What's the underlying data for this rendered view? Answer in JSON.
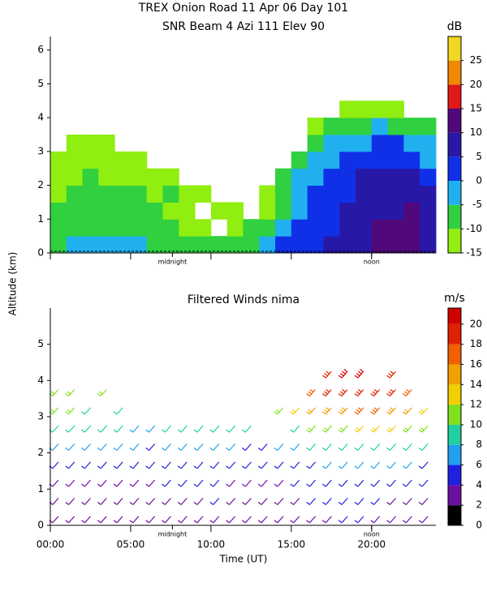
{
  "chart_data": [
    {
      "type": "heatmap",
      "title": "TREX Onion Road  11 Apr 06 Day 101",
      "subtitle": "SNR Beam 4 Azi 111 Elev 90",
      "ylabel": "Altitude (km)",
      "x_edges": [
        0,
        1,
        2,
        3,
        4,
        5,
        6,
        7,
        8,
        9,
        10,
        11,
        12,
        13,
        14,
        15,
        16,
        17,
        18,
        19,
        20,
        21,
        22,
        23,
        24
      ],
      "y_edges": [
        0,
        0.5,
        1,
        1.5,
        2,
        2.5,
        3,
        3.5,
        4,
        4.5
      ],
      "values": [
        [
          -6,
          -4,
          -3,
          -2,
          -4,
          -3,
          -6,
          -8,
          -8,
          -9,
          -10,
          -10,
          -8,
          -5,
          2,
          4,
          3,
          5,
          6,
          8,
          10,
          12,
          12,
          8
        ],
        [
          -9,
          -7,
          -6,
          -6,
          -7,
          -6,
          -8,
          -10,
          -11,
          -12,
          null,
          -12,
          -10,
          -8,
          -4,
          0,
          2,
          4,
          6,
          8,
          10,
          12,
          13,
          9
        ],
        [
          -10,
          -8,
          -8,
          -7,
          -9,
          -8,
          -10,
          -12,
          -12,
          null,
          -13,
          -12,
          null,
          -11,
          -6,
          -2,
          1,
          3,
          5,
          7,
          8,
          9,
          10,
          7
        ],
        [
          -11,
          -10,
          -9,
          -9,
          -10,
          -10,
          -12,
          -9,
          -13,
          -12,
          null,
          null,
          null,
          -12,
          -7,
          -3,
          0,
          2,
          4,
          6,
          7,
          8,
          7,
          5
        ],
        [
          -12,
          -11,
          -10,
          -11,
          -12,
          -12,
          -13,
          -12,
          null,
          null,
          null,
          null,
          null,
          null,
          -10,
          -5,
          -2,
          1,
          3,
          5,
          5,
          6,
          5,
          2
        ],
        [
          -13,
          -12,
          -12,
          -12,
          -13,
          -13,
          null,
          null,
          null,
          null,
          null,
          null,
          null,
          null,
          null,
          -8,
          -5,
          -2,
          1,
          3,
          3,
          4,
          2,
          -1
        ],
        [
          null,
          -13,
          -13,
          -13,
          null,
          null,
          null,
          null,
          null,
          null,
          null,
          null,
          null,
          null,
          null,
          null,
          -8,
          -5,
          -3,
          -1,
          0,
          1,
          -1,
          -4
        ],
        [
          null,
          null,
          null,
          null,
          null,
          null,
          null,
          null,
          null,
          null,
          null,
          null,
          null,
          null,
          null,
          null,
          -12,
          -10,
          -8,
          -6,
          -5,
          -6,
          -8,
          -10
        ],
        [
          null,
          null,
          null,
          null,
          null,
          null,
          null,
          null,
          null,
          null,
          null,
          null,
          null,
          null,
          null,
          null,
          null,
          null,
          -13,
          -12,
          -12,
          -13,
          null,
          null
        ]
      ],
      "xlim": [
        0,
        24
      ],
      "ylim": [
        0,
        6.4
      ],
      "yticks": [
        0,
        1,
        2,
        3,
        4,
        5,
        6
      ],
      "annotations": [
        {
          "text": "midnight",
          "x": 7.6
        },
        {
          "text": "noon",
          "x": 20
        }
      ],
      "colorbar": {
        "label": "dB",
        "lim": [
          -15,
          30
        ],
        "bounds": [
          -15,
          -10,
          -5,
          0,
          5,
          10,
          15,
          20,
          25,
          30
        ],
        "colors": [
          "#90ee10",
          "#30d040",
          "#20b0f0",
          "#1030e8",
          "#2818a8",
          "#50087a",
          "#e01818",
          "#f08800",
          "#f0d820"
        ],
        "ticks": [
          -15,
          -10,
          -5,
          0,
          5,
          10,
          15,
          20,
          25
        ]
      }
    },
    {
      "type": "barbs",
      "title": "Filtered Winds nima",
      "xlabel": "Time (UT)",
      "x": [
        0.5,
        1.5,
        2.5,
        3.5,
        4.5,
        5.5,
        6.5,
        7.5,
        8.5,
        9.5,
        10.5,
        11.5,
        12.5,
        13.5,
        14.5,
        15.5,
        16.5,
        17.5,
        18.5,
        19.5,
        20.5,
        21.5,
        22.5,
        23.5
      ],
      "y": [
        0.25,
        0.75,
        1.25,
        1.75,
        2.25,
        2.75,
        3.25,
        3.75,
        4.25
      ],
      "values": [
        [
          2,
          2,
          3,
          2,
          2,
          3,
          2,
          3,
          3,
          3,
          3,
          3,
          3,
          3,
          2,
          3,
          3,
          3,
          4,
          4,
          3,
          3,
          2,
          2
        ],
        [
          3,
          2,
          3,
          3,
          2,
          3,
          3,
          3,
          3,
          3,
          4,
          3,
          3,
          3,
          3,
          3,
          4,
          4,
          4,
          5,
          4,
          3,
          3,
          3
        ],
        [
          3,
          3,
          3,
          3,
          3,
          3,
          3,
          4,
          4,
          4,
          4,
          3,
          3,
          3,
          3,
          4,
          4,
          5,
          5,
          5,
          5,
          4,
          4,
          4
        ],
        [
          4,
          4,
          4,
          4,
          4,
          4,
          4,
          4,
          5,
          5,
          4,
          4,
          4,
          4,
          4,
          5,
          5,
          6,
          6,
          6,
          6,
          6,
          6,
          5
        ],
        [
          6,
          6,
          6,
          6,
          6,
          6,
          5,
          6,
          6,
          6,
          6,
          6,
          5,
          5,
          6,
          7,
          8,
          8,
          8,
          9,
          9,
          8,
          8,
          8
        ],
        [
          8,
          8,
          8,
          8,
          8,
          7,
          7,
          8,
          8,
          8,
          9,
          9,
          8,
          null,
          null,
          9,
          10,
          11,
          11,
          12,
          12,
          12,
          11,
          11
        ],
        [
          10,
          10,
          9,
          null,
          9,
          null,
          null,
          null,
          null,
          null,
          null,
          null,
          null,
          null,
          10,
          12,
          14,
          15,
          15,
          16,
          16,
          15,
          14,
          13
        ],
        [
          11,
          11,
          null,
          10,
          null,
          null,
          null,
          null,
          null,
          null,
          null,
          null,
          null,
          null,
          null,
          null,
          17,
          18,
          18,
          19,
          18,
          18,
          17,
          null
        ],
        [
          null,
          null,
          null,
          null,
          null,
          null,
          null,
          null,
          null,
          null,
          null,
          null,
          null,
          null,
          null,
          null,
          null,
          19,
          20,
          20,
          null,
          19,
          null,
          null
        ]
      ],
      "xlim": [
        0,
        24
      ],
      "ylim": [
        0,
        6
      ],
      "yticks": [
        0,
        1,
        2,
        3,
        4,
        5
      ],
      "xticks": [
        {
          "value": 0,
          "label": "00:00"
        },
        {
          "value": 5,
          "label": "05:00"
        },
        {
          "value": 10,
          "label": "10:00"
        },
        {
          "value": 15,
          "label": "15:00"
        },
        {
          "value": 20,
          "label": "20:00"
        }
      ],
      "annotations": [
        {
          "text": "midnight",
          "x": 7.6
        },
        {
          "text": "noon",
          "x": 20
        }
      ],
      "colorbar": {
        "label": "m/s",
        "lim": [
          0,
          21.6
        ],
        "bounds": [
          0,
          2,
          4,
          6,
          8,
          10,
          12,
          14,
          16,
          18,
          20,
          21.6
        ],
        "colors": [
          "#000000",
          "#6a10a0",
          "#2020e0",
          "#20a0f0",
          "#20d0a0",
          "#80e020",
          "#f0d000",
          "#f0a000",
          "#f06000",
          "#e02000",
          "#d00000"
        ],
        "ticks": [
          0,
          2,
          4,
          6,
          8,
          10,
          12,
          14,
          16,
          18,
          20
        ]
      }
    }
  ]
}
